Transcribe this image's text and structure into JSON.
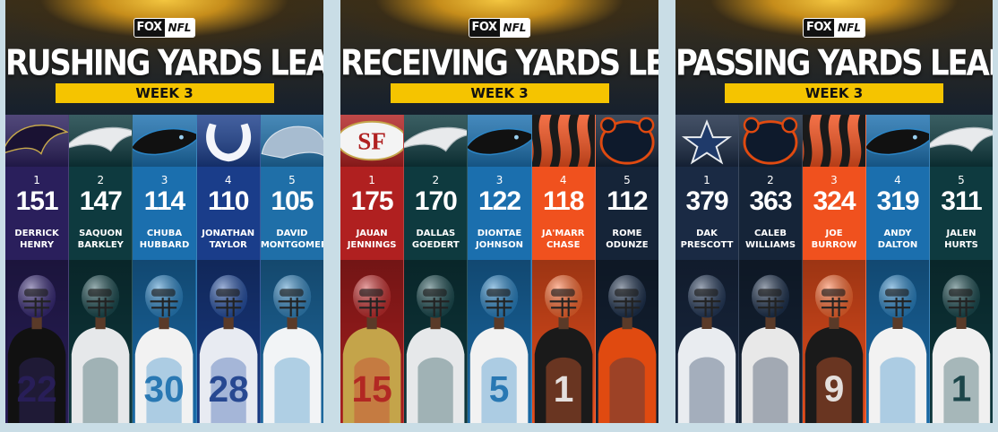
{
  "brand": {
    "fox": "FOX",
    "nfl": "NFL"
  },
  "panels": [
    {
      "title": "RUSHING YARDS LEADERS",
      "week": "WEEK 3",
      "players": [
        {
          "rank": "1",
          "yards": "151",
          "first": "DERRICK",
          "last": "HENRY",
          "team": "ravens",
          "jersey": "22",
          "color": "#2a1f5c",
          "light": "#3a2c7a",
          "accent": "#111111",
          "logo_icon": "raven-icon"
        },
        {
          "rank": "2",
          "yards": "147",
          "first": "SAQUON",
          "last": "BARKLEY",
          "team": "eagles",
          "jersey": "",
          "color": "#0e3a3f",
          "light": "#1c4d52",
          "accent": "#e6e8ea",
          "logo_icon": "eagle-icon"
        },
        {
          "rank": "3",
          "yards": "114",
          "first": "CHUBA",
          "last": "HUBBARD",
          "team": "panthers",
          "jersey": "30",
          "color": "#1b6fae",
          "light": "#2b86c8",
          "accent": "#f2f2f2",
          "logo_icon": "panther-icon"
        },
        {
          "rank": "4",
          "yards": "110",
          "first": "JONATHAN",
          "last": "TAYLOR",
          "team": "colts",
          "jersey": "28",
          "color": "#1a3d8a",
          "light": "#2853a8",
          "accent": "#e8ebf2",
          "logo_icon": "horseshoe-icon"
        },
        {
          "rank": "5",
          "yards": "105",
          "first": "DAVID",
          "last": "MONTGOMERY",
          "team": "lions",
          "jersey": "",
          "color": "#1f6fa8",
          "light": "#3589c4",
          "accent": "#f2f4f6",
          "logo_icon": "lion-icon"
        }
      ]
    },
    {
      "title": "RECEIVING YARDS LEADERS",
      "week": "WEEK 3",
      "players": [
        {
          "rank": "1",
          "yards": "175",
          "first": "JAUAN",
          "last": "JENNINGS",
          "team": "49ers",
          "jersey": "15",
          "color": "#b02020",
          "light": "#c93030",
          "accent": "#c4a44a",
          "logo_icon": "sf-icon"
        },
        {
          "rank": "2",
          "yards": "170",
          "first": "DALLAS",
          "last": "GOEDERT",
          "team": "eagles",
          "jersey": "",
          "color": "#0e3a3f",
          "light": "#1c4d52",
          "accent": "#e6e8ea",
          "logo_icon": "eagle-icon"
        },
        {
          "rank": "3",
          "yards": "122",
          "first": "DIONTAE",
          "last": "JOHNSON",
          "team": "panthers",
          "jersey": "5",
          "color": "#1b6fae",
          "light": "#2b86c8",
          "accent": "#f2f2f2",
          "logo_icon": "panther-icon"
        },
        {
          "rank": "4",
          "yards": "118",
          "first": "JA'MARR",
          "last": "CHASE",
          "team": "bengals",
          "jersey": "1",
          "color": "#f0511e",
          "light": "#ff6a30",
          "accent": "#1a1a1a",
          "logo_icon": "tiger-stripe-icon"
        },
        {
          "rank": "5",
          "yards": "112",
          "first": "ROME",
          "last": "ODUNZE",
          "team": "bears",
          "jersey": "",
          "color": "#152438",
          "light": "#1f3350",
          "accent": "#e04a10",
          "logo_icon": "bear-icon"
        }
      ]
    },
    {
      "title": "PASSING YARDS LEADERS",
      "week": "WEEK 3",
      "players": [
        {
          "rank": "1",
          "yards": "379",
          "first": "DAK",
          "last": "PRESCOTT",
          "team": "cowboys",
          "jersey": "",
          "color": "#1a2a44",
          "light": "#263b5c",
          "accent": "#e9ecf0",
          "logo_icon": "star-icon"
        },
        {
          "rank": "2",
          "yards": "363",
          "first": "CALEB",
          "last": "WILLIAMS",
          "team": "bears",
          "jersey": "",
          "color": "#152438",
          "light": "#1f3350",
          "accent": "#e8e8e8",
          "logo_icon": "bear-icon"
        },
        {
          "rank": "3",
          "yards": "324",
          "first": "JOE",
          "last": "BURROW",
          "team": "bengals",
          "jersey": "9",
          "color": "#f0511e",
          "light": "#ff6a30",
          "accent": "#1a1a1a",
          "logo_icon": "tiger-stripe-icon"
        },
        {
          "rank": "4",
          "yards": "319",
          "first": "ANDY",
          "last": "DALTON",
          "team": "panthers",
          "jersey": "",
          "color": "#1b6fae",
          "light": "#2b86c8",
          "accent": "#f2f2f2",
          "logo_icon": "panther-icon"
        },
        {
          "rank": "5",
          "yards": "311",
          "first": "JALEN",
          "last": "HURTS",
          "team": "eagles",
          "jersey": "1",
          "color": "#0e3a3f",
          "light": "#1c4d52",
          "accent": "#f0f0f0",
          "logo_icon": "eagle-icon"
        }
      ]
    }
  ]
}
